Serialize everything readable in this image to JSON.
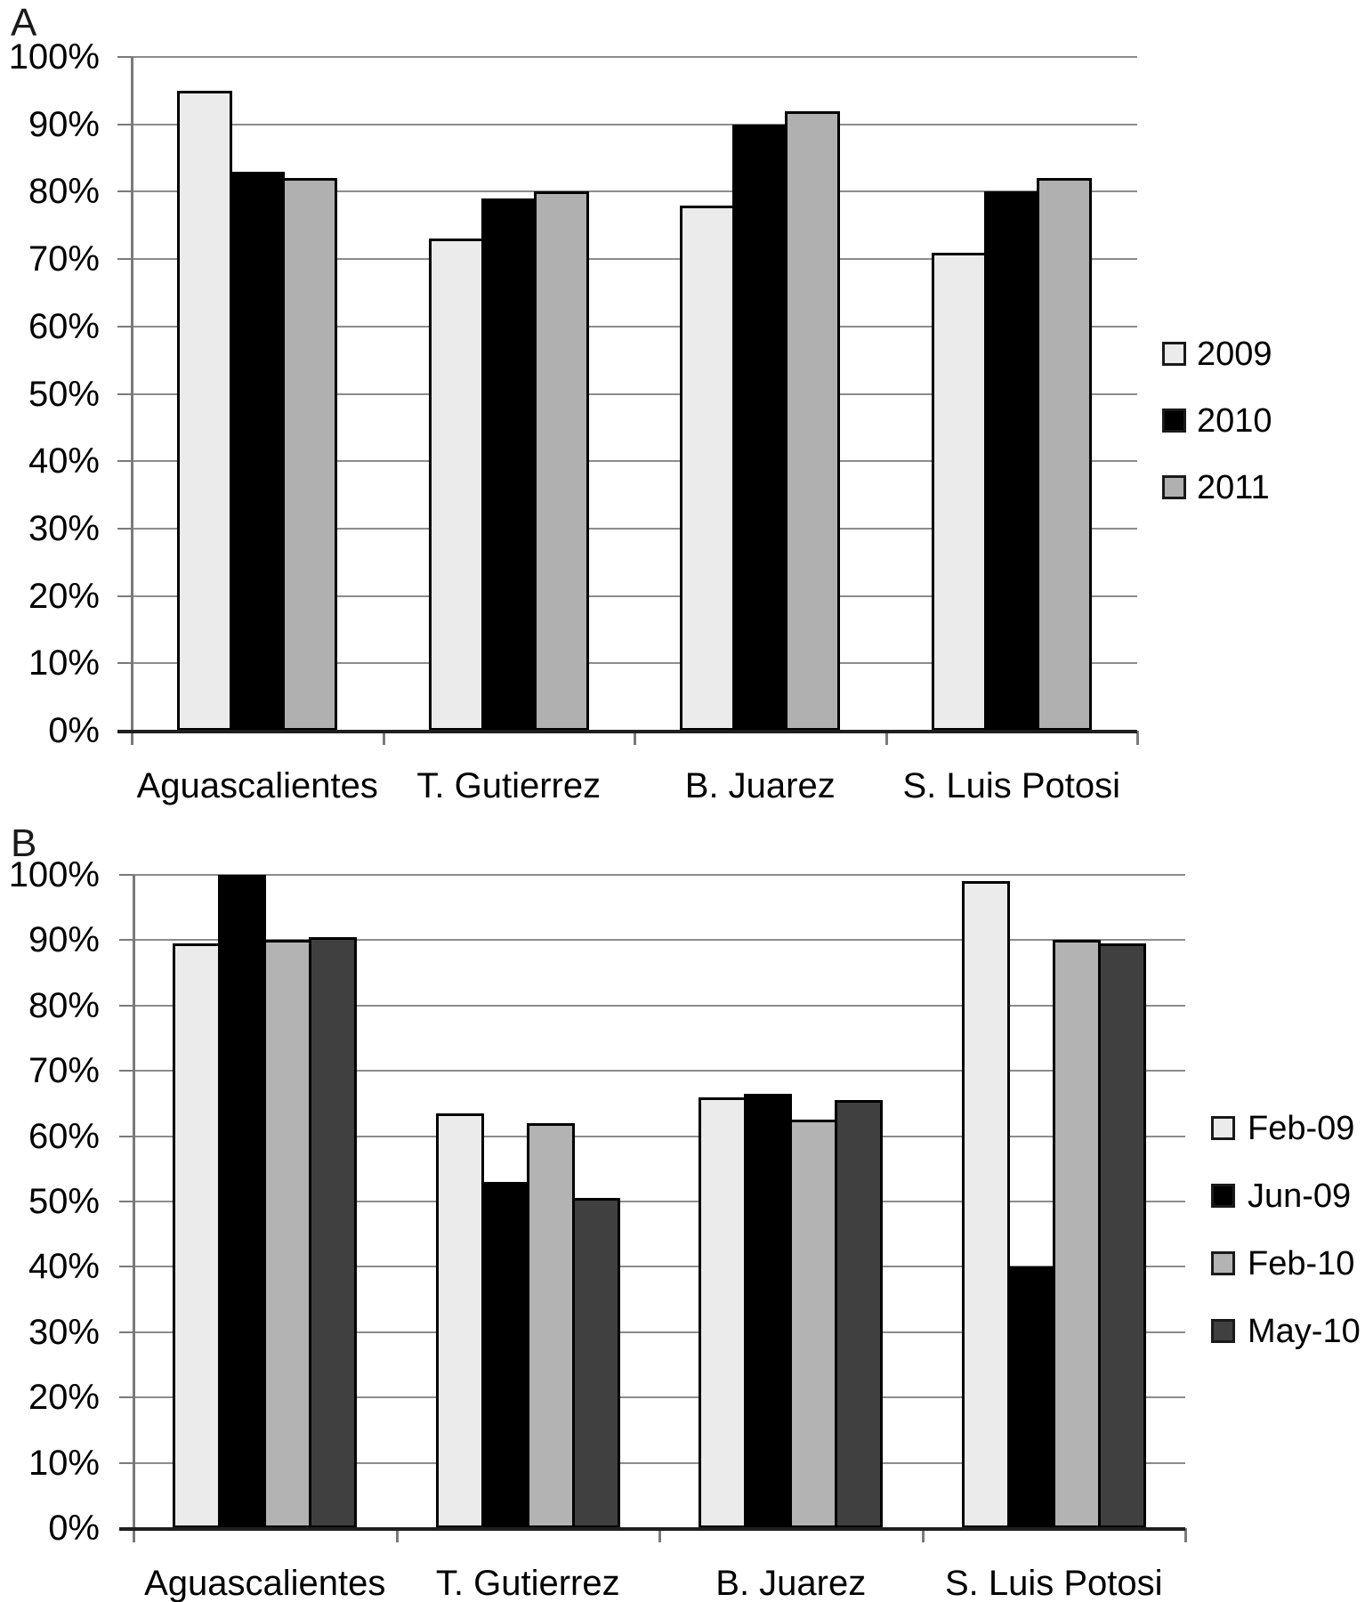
{
  "chart_data": [
    {
      "type": "bar",
      "panel_label": "A",
      "title": "",
      "xlabel": "",
      "ylabel": "",
      "ylim": [
        0,
        100
      ],
      "grid": true,
      "legend_position": "right",
      "categories": [
        "Aguascalientes",
        "T. Gutierrez",
        "B. Juarez",
        "S. Luis Potosi"
      ],
      "series": [
        {
          "name": "2009",
          "color": "#ebebeb",
          "values": [
            95,
            73,
            78,
            71
          ]
        },
        {
          "name": "2010",
          "color": "#000000",
          "values": [
            83,
            79,
            90,
            80
          ]
        },
        {
          "name": "2011",
          "color": "#b0b0b0",
          "values": [
            82,
            80,
            92,
            82
          ]
        }
      ],
      "y_tick_labels": [
        "0%",
        "10%",
        "20%",
        "30%",
        "40%",
        "50%",
        "60%",
        "70%",
        "80%",
        "90%",
        "100%"
      ]
    },
    {
      "type": "bar",
      "panel_label": "B",
      "title": "",
      "xlabel": "",
      "ylabel": "",
      "ylim": [
        0,
        100
      ],
      "grid": true,
      "legend_position": "right",
      "categories": [
        "Aguascalientes",
        "T. Gutierrez",
        "B. Juarez",
        "S. Luis Potosi"
      ],
      "series": [
        {
          "name": "Feb-09",
          "color": "#ebebeb",
          "values": [
            89.5,
            63.5,
            66,
            99
          ]
        },
        {
          "name": "Jun-09",
          "color": "#000000",
          "values": [
            100,
            53,
            66.5,
            40
          ]
        },
        {
          "name": "Feb-10",
          "color": "#b3b3b3",
          "values": [
            90,
            62,
            62.5,
            90
          ]
        },
        {
          "name": "May-10",
          "color": "#404040",
          "values": [
            90.5,
            50.5,
            65.5,
            89.5
          ]
        }
      ],
      "y_tick_labels": [
        "0%",
        "10%",
        "20%",
        "30%",
        "40%",
        "50%",
        "60%",
        "70%",
        "80%",
        "90%",
        "100%"
      ]
    }
  ]
}
